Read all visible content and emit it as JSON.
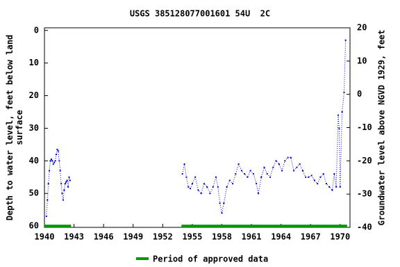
{
  "chart_data": {
    "type": "line",
    "title": "USGS 385128077001601 54U  2C",
    "y_label": [
      "Depth to water level, feet below land",
      "surface"
    ],
    "y2_label": "Groundwater level above NGVD 1929, feet",
    "xlim": [
      1940,
      1971
    ],
    "xticks": [
      1940,
      1943,
      1946,
      1949,
      1952,
      1955,
      1958,
      1961,
      1964,
      1967,
      1970
    ],
    "ylim": [
      -0.8,
      60.4
    ],
    "yticks": [
      0,
      10,
      20,
      30,
      40,
      50,
      60
    ],
    "y_inverted": true,
    "y2lim": [
      -40,
      20
    ],
    "y2ticks": [
      20,
      10,
      0,
      -10,
      -20,
      -30,
      -40
    ],
    "series": [
      {
        "color": "#0000cc",
        "x": [
          1940.2,
          1940.3,
          1940.4,
          1940.5,
          1940.6,
          1940.7,
          1940.8,
          1940.9,
          1941.0,
          1941.1,
          1941.2,
          1941.3,
          1941.4,
          1941.5,
          1941.6,
          1941.7,
          1941.8,
          1941.9,
          1942.0,
          1942.1,
          1942.2,
          1942.3,
          1942.4,
          1942.5,
          1942.6,
          1948.0,
          1954.0,
          1954.2,
          1954.4,
          1954.6,
          1954.8,
          1955.0,
          1955.3,
          1955.6,
          1955.9,
          1956.2,
          1956.5,
          1956.8,
          1957.1,
          1957.4,
          1957.6,
          1957.8,
          1958.0,
          1958.2,
          1958.5,
          1958.8,
          1959.1,
          1959.4,
          1959.7,
          1960.0,
          1960.3,
          1960.6,
          1960.9,
          1961.2,
          1961.5,
          1961.7,
          1962.0,
          1962.3,
          1962.6,
          1962.9,
          1963.2,
          1963.5,
          1963.8,
          1964.1,
          1964.4,
          1964.7,
          1965.0,
          1965.3,
          1965.6,
          1965.9,
          1966.2,
          1966.5,
          1966.8,
          1967.1,
          1967.4,
          1967.7,
          1968.0,
          1968.3,
          1968.6,
          1968.9,
          1969.2,
          1969.4,
          1969.6,
          1969.8,
          1969.9,
          1970.0,
          1970.2,
          1970.4,
          1970.55
        ],
        "values": [
          57,
          52,
          47,
          43,
          40,
          39.5,
          40,
          41,
          40.5,
          40,
          38,
          36.5,
          37,
          40,
          43,
          47,
          50,
          52,
          49,
          47,
          46.5,
          46,
          48,
          45,
          46,
          null,
          44,
          41,
          45,
          48,
          48.5,
          47,
          45,
          49,
          50,
          47,
          48,
          50,
          48,
          45,
          48,
          53,
          56,
          53,
          48,
          46,
          47,
          44,
          41,
          43,
          44,
          45,
          43,
          44,
          47,
          50,
          45,
          42,
          44,
          45,
          42,
          40,
          41,
          43,
          40,
          39,
          39,
          43,
          42,
          41,
          43,
          45,
          45,
          44.5,
          46,
          47,
          45,
          44,
          47,
          48,
          49,
          44,
          48,
          26,
          30,
          48,
          25,
          19,
          3
        ]
      }
    ],
    "approved_periods": {
      "name": "Period of approved data",
      "color": "#009900",
      "start": [
        1940,
        1953.9
      ],
      "end": [
        1942.7,
        1970.7
      ],
      "depth": 60
    }
  }
}
